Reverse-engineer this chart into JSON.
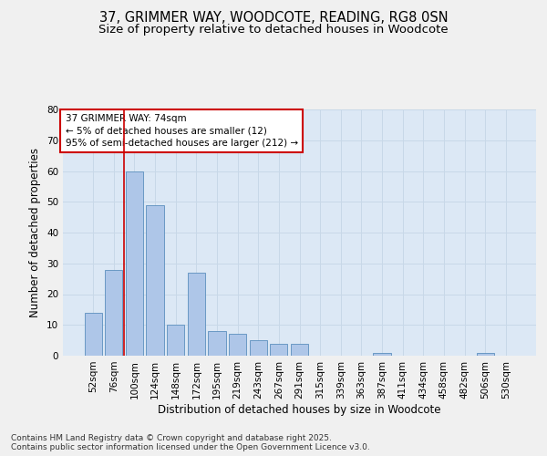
{
  "title_line1": "37, GRIMMER WAY, WOODCOTE, READING, RG8 0SN",
  "title_line2": "Size of property relative to detached houses in Woodcote",
  "xlabel": "Distribution of detached houses by size in Woodcote",
  "ylabel": "Number of detached properties",
  "categories": [
    "52sqm",
    "76sqm",
    "100sqm",
    "124sqm",
    "148sqm",
    "172sqm",
    "195sqm",
    "219sqm",
    "243sqm",
    "267sqm",
    "291sqm",
    "315sqm",
    "339sqm",
    "363sqm",
    "387sqm",
    "411sqm",
    "434sqm",
    "458sqm",
    "482sqm",
    "506sqm",
    "530sqm"
  ],
  "values": [
    14,
    28,
    60,
    49,
    10,
    27,
    8,
    7,
    5,
    4,
    4,
    0,
    0,
    0,
    1,
    0,
    0,
    0,
    0,
    1,
    0
  ],
  "bar_color": "#aec6e8",
  "bar_edge_color": "#5b8fbe",
  "annotation_text": "37 GRIMMER WAY: 74sqm\n← 5% of detached houses are smaller (12)\n95% of semi-detached houses are larger (212) →",
  "annotation_box_color": "#ffffff",
  "annotation_box_edge_color": "#cc0000",
  "vline_color": "#cc0000",
  "vline_x": 1.5,
  "ylim": [
    0,
    80
  ],
  "yticks": [
    0,
    10,
    20,
    30,
    40,
    50,
    60,
    70,
    80
  ],
  "grid_color": "#c8d8e8",
  "background_color": "#dce8f5",
  "fig_background_color": "#f0f0f0",
  "footer_text": "Contains HM Land Registry data © Crown copyright and database right 2025.\nContains public sector information licensed under the Open Government Licence v3.0.",
  "title_fontsize": 10.5,
  "subtitle_fontsize": 9.5,
  "axis_label_fontsize": 8.5,
  "tick_fontsize": 7.5,
  "annotation_fontsize": 7.5,
  "footer_fontsize": 6.5
}
